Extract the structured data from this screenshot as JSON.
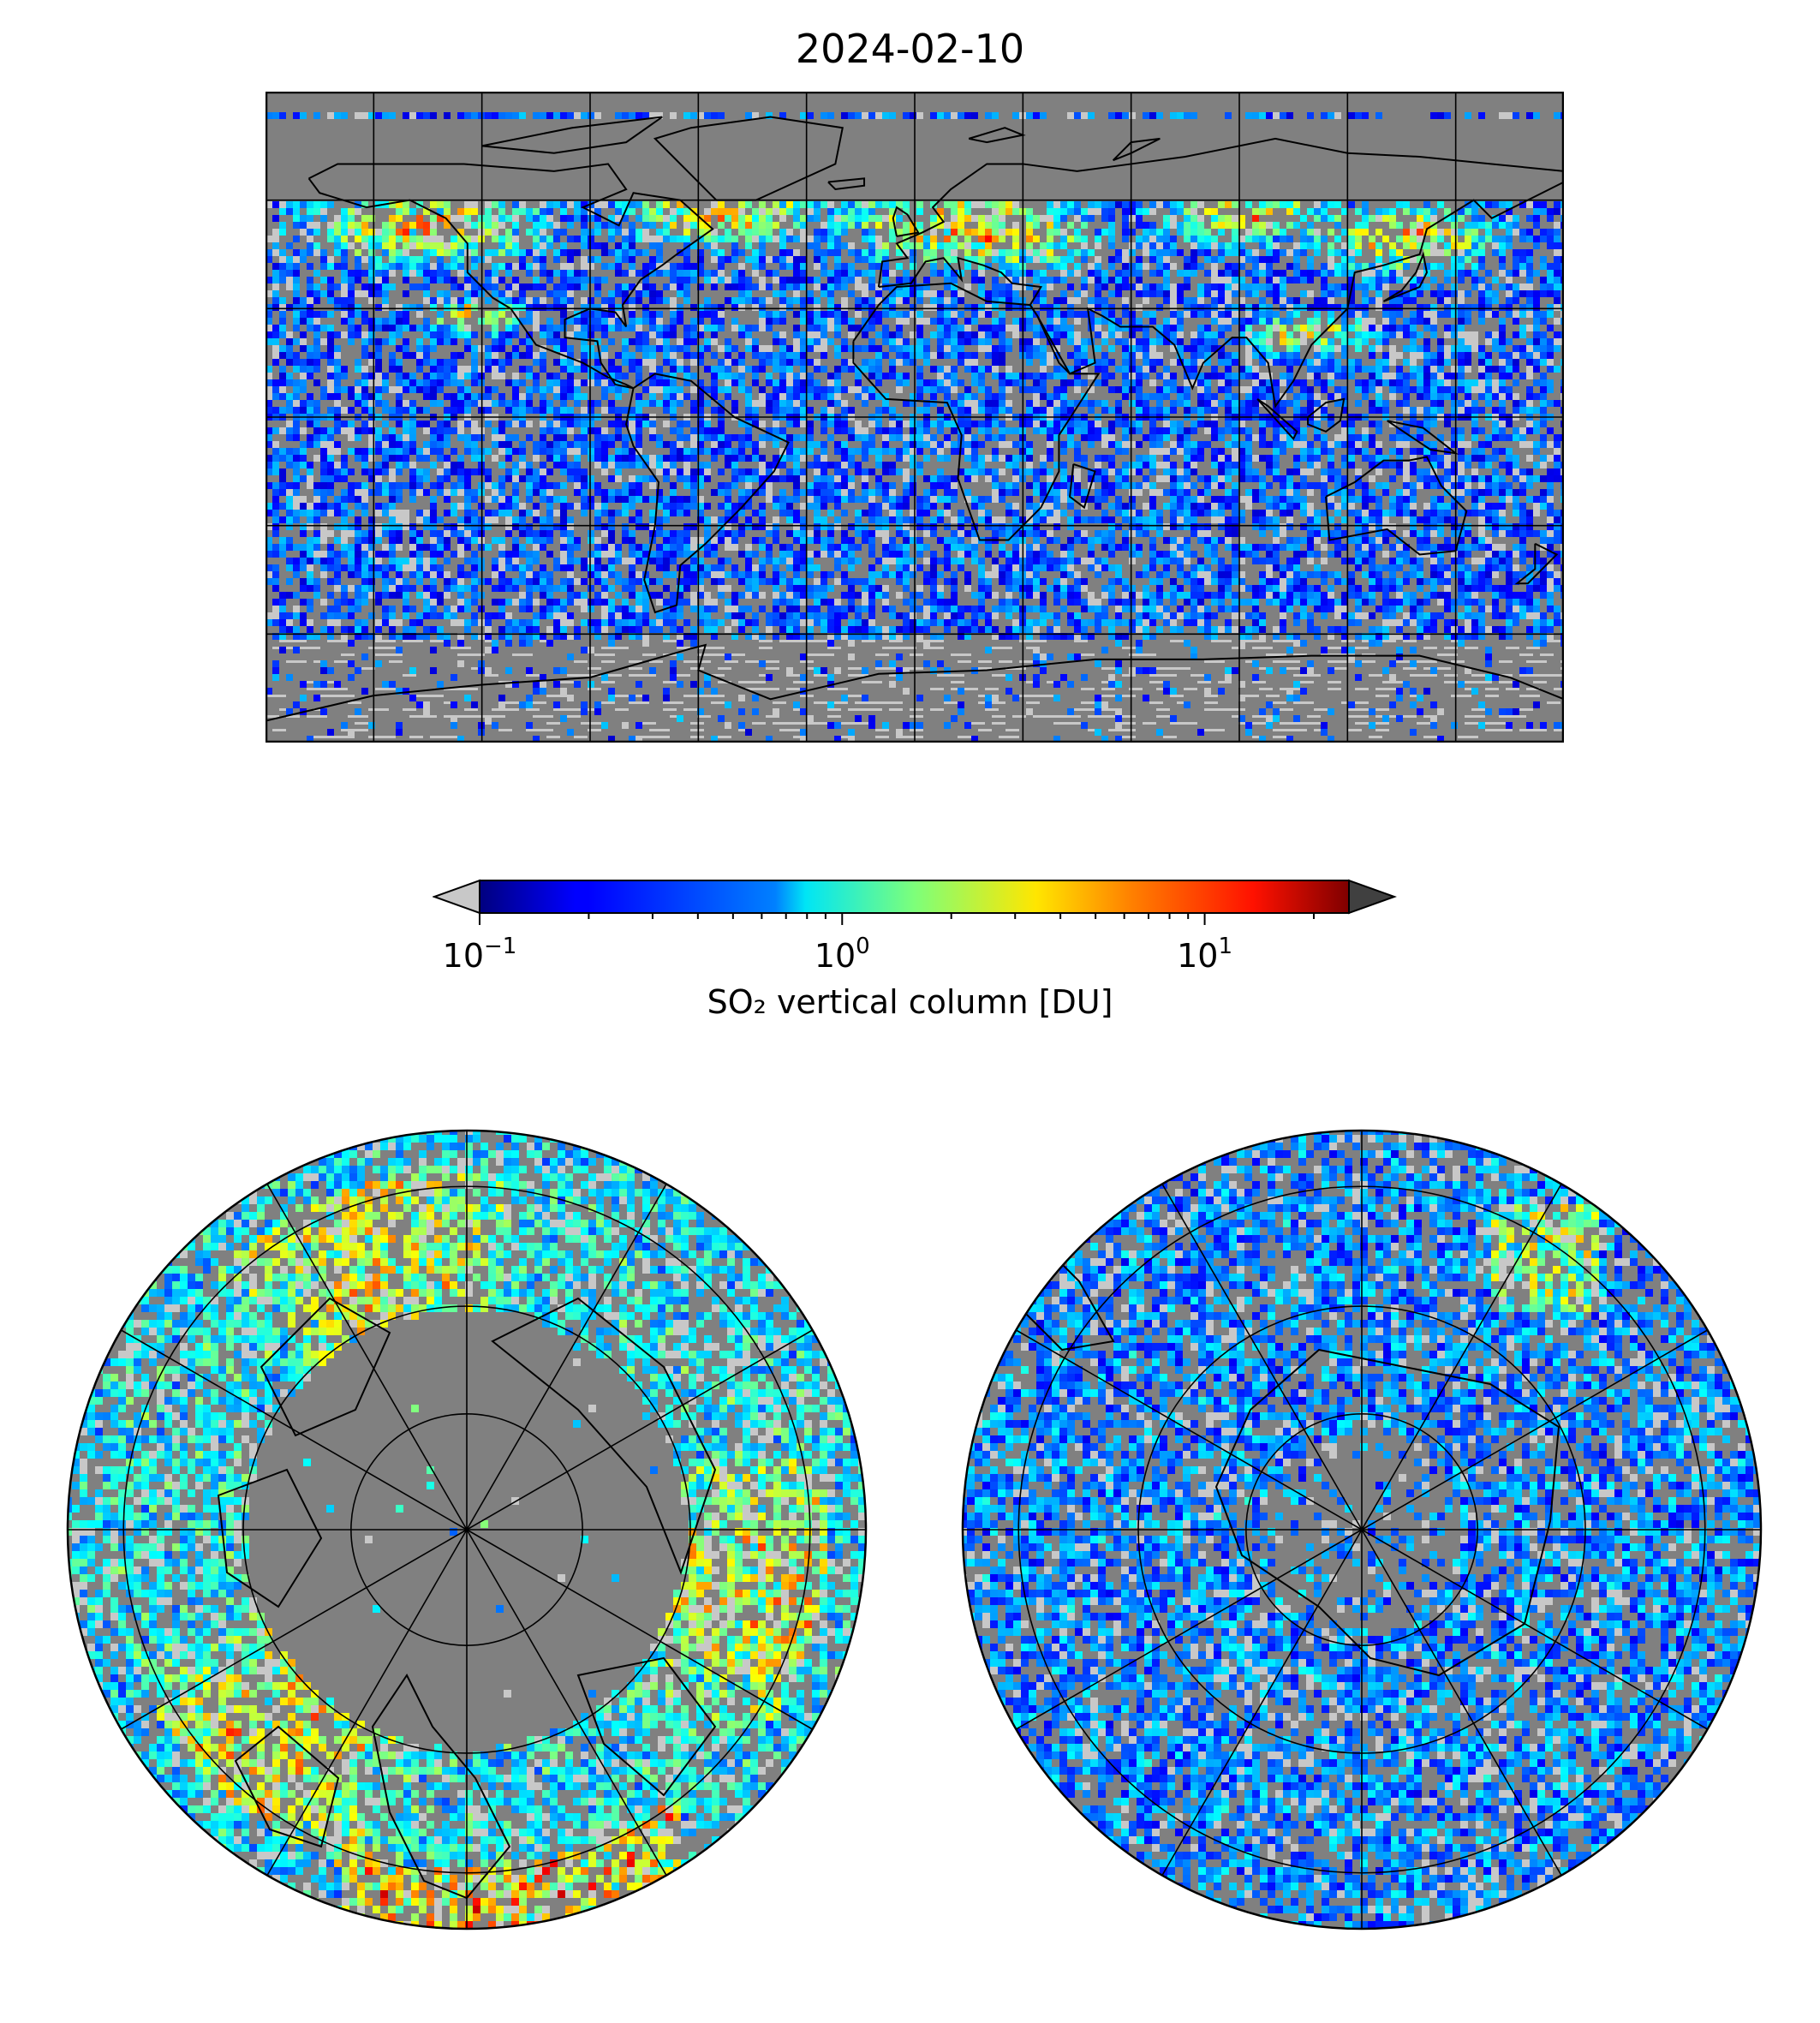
{
  "title": "2024-02-10",
  "colorbar": {
    "label": "SO₂ vertical column [DU]",
    "scale": "log",
    "range": [
      0.1,
      25
    ],
    "extend": "both",
    "under_color": "#c8c8c8",
    "over_color": "#404040",
    "ticks": [
      {
        "value": 0.1,
        "base": "10",
        "exp": "−1"
      },
      {
        "value": 1,
        "base": "10",
        "exp": "0"
      },
      {
        "value": 10,
        "base": "10",
        "exp": "1"
      }
    ],
    "colormap": "jet"
  },
  "maps": [
    {
      "name": "global-map",
      "projection": "plate-carree",
      "gridlines": "every 30°"
    },
    {
      "name": "north-polar-map",
      "projection": "north-polar-stereographic"
    },
    {
      "name": "south-polar-map",
      "projection": "south-polar-stereographic"
    }
  ],
  "colors": {
    "missing": "#808080",
    "background": "#ffffff",
    "coastline": "#000000"
  }
}
